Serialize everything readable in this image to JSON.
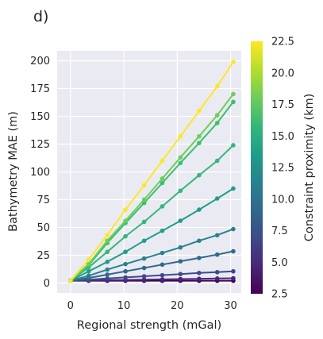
{
  "chart_data": {
    "type": "line",
    "panel_label": "d)",
    "xlabel": "Regional strength (mGal)",
    "ylabel": "Bathymetry MAE (m)",
    "xlim": [
      -2.5,
      32
    ],
    "ylim": [
      -9,
      209
    ],
    "xticks": [
      0,
      10,
      20,
      30
    ],
    "yticks": [
      0,
      25,
      50,
      75,
      100,
      125,
      150,
      175,
      200
    ],
    "grid": true,
    "x": [
      0,
      3.4,
      6.9,
      10.3,
      13.8,
      17.2,
      20.6,
      24.1,
      27.5,
      30.5
    ],
    "series": [
      {
        "constraint_proximity_km": 2.5,
        "color": "#440154",
        "values": [
          2,
          2,
          2,
          2,
          2,
          2,
          2,
          2,
          2,
          2
        ]
      },
      {
        "constraint_proximity_km": 5.0,
        "color": "#482878",
        "values": [
          2,
          2.2,
          2.5,
          2.7,
          3,
          3.2,
          3.5,
          3.7,
          4,
          4.2
        ]
      },
      {
        "constraint_proximity_km": 7.5,
        "color": "#3e4a89",
        "values": [
          2,
          3,
          4,
          5,
          6,
          7,
          8,
          9,
          9.7,
          10.5
        ]
      },
      {
        "constraint_proximity_km": 10.0,
        "color": "#31688e",
        "values": [
          2,
          4.5,
          7.5,
          10.5,
          13.5,
          16.5,
          19.5,
          22.5,
          25.5,
          28.5
        ]
      },
      {
        "constraint_proximity_km": 12.5,
        "color": "#26828e",
        "values": [
          2,
          6.5,
          12,
          17,
          22,
          27,
          32,
          38,
          43,
          48.5
        ]
      },
      {
        "constraint_proximity_km": 15.0,
        "color": "#1f9e89",
        "values": [
          2,
          10.5,
          19,
          28,
          38,
          47,
          56,
          66,
          76,
          85
        ]
      },
      {
        "constraint_proximity_km": 17.5,
        "color": "#35b779",
        "values": [
          2,
          14,
          28,
          42,
          55,
          69,
          83,
          97,
          110,
          124
        ]
      },
      {
        "constraint_proximity_km": 19.0,
        "color": "#3bbf6e",
        "values": [
          2,
          16,
          36,
          54,
          72,
          90,
          108,
          126,
          144,
          163
        ]
      },
      {
        "constraint_proximity_km": 20.0,
        "color": "#6ece58",
        "values": [
          2,
          17,
          38,
          56,
          75,
          94,
          113,
          132,
          151,
          170
        ]
      },
      {
        "constraint_proximity_km": 22.5,
        "color": "#fde725",
        "values": [
          2,
          21,
          43,
          66,
          88,
          110,
          132,
          155,
          177,
          199
        ]
      }
    ],
    "colorbar": {
      "label": "Constraint proximity (km)",
      "min": 2.5,
      "max": 22.5,
      "ticks": [
        "2.5",
        "5.0",
        "7.5",
        "10.0",
        "12.5",
        "15.0",
        "17.5",
        "20.0",
        "22.5"
      ],
      "colormap": "viridis",
      "stops": [
        "#440154",
        "#482878",
        "#3e4a89",
        "#31688e",
        "#26828e",
        "#1f9e89",
        "#35b779",
        "#6ece58",
        "#b5de2b",
        "#fde725"
      ]
    }
  }
}
